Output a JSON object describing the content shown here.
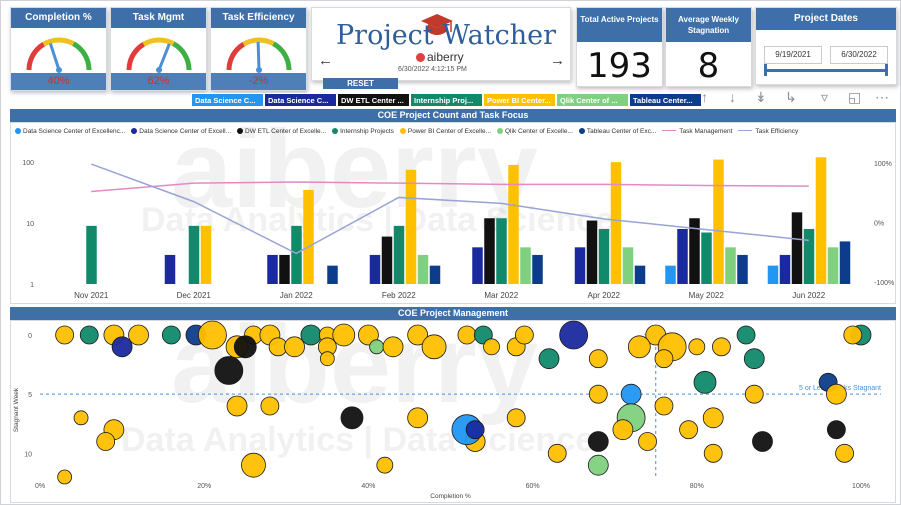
{
  "gauges": [
    {
      "title": "Completion %",
      "value": "40%",
      "level": 0.4,
      "needle_color": "#4a90d9"
    },
    {
      "title": "Task Mgmt",
      "value": "62%",
      "level": 0.62,
      "needle_color": "#4a90d9"
    },
    {
      "title": "Task Efficiency",
      "value": "-2%",
      "level": 0.49,
      "needle_color": "#4a90d9"
    }
  ],
  "header": {
    "app_title": "Project Watcher",
    "brand": "aiberry",
    "timestamp": "6/30/2022 4:12:15 PM",
    "reset_label": "RESET",
    "prev_icon": "arrow-left-icon",
    "next_icon": "arrow-right-icon"
  },
  "kpis": [
    {
      "title": "Total Active Projects",
      "value": "193"
    },
    {
      "title": "Average Weekly Stagnation",
      "value": "8"
    }
  ],
  "project_dates": {
    "title": "Project Dates",
    "start": "9/19/2021",
    "end": "6/30/2022",
    "range_fraction": [
      0.0,
      1.0
    ]
  },
  "filter_tabs": [
    {
      "label": "Data Science C...",
      "color": "#2196f3"
    },
    {
      "label": "Data Science C...",
      "color": "#1a2a9e"
    },
    {
      "label": "DW ETL Center ...",
      "color": "#111111"
    },
    {
      "label": "Internship Proj...",
      "color": "#11896b"
    },
    {
      "label": "Power BI Center...",
      "color": "#ffc000"
    },
    {
      "label": "Qlik Center of ...",
      "color": "#7fd17f"
    },
    {
      "label": "Tableau Center...",
      "color": "#0d3d8a"
    }
  ],
  "toolbar_icons": [
    "arrow-up-icon",
    "arrow-down-icon",
    "double-down-icon",
    "expand-level-icon",
    "filter-icon",
    "focus-mode-icon",
    "more-options-icon"
  ],
  "sections": {
    "chart1_title": "COE Project Count and Task Focus",
    "chart2_title": "COE Project Management"
  },
  "watermarks": {
    "brand": "aiberry",
    "tagline": "Data Analytics | Data Science"
  },
  "colors": {
    "ds1": "#2196f3",
    "ds2": "#1a2a9e",
    "dw": "#111111",
    "intern": "#11896b",
    "pbi": "#ffc000",
    "qlik": "#7fd17f",
    "tableau": "#0d3d8a",
    "task_mgmt": "#e589c6",
    "task_eff": "#9aa3d6",
    "header_blue": "#3e6fa8"
  },
  "chart_data": [
    {
      "type": "bar",
      "title": "COE Project Count and Task Focus",
      "y_scale": "log",
      "ylim": [
        1,
        100
      ],
      "y_ticks": [
        "1",
        "10",
        "100"
      ],
      "y2_ticks": [
        "100%",
        "0%",
        "-100%"
      ],
      "categories": [
        "Nov 2021",
        "Dec 2021",
        "Jan 2022",
        "Feb 2022",
        "Mar 2022",
        "Apr 2022",
        "May 2022",
        "Jun 2022"
      ],
      "legend_position": "top",
      "series": [
        {
          "name": "Data Science Center of Excellenc...",
          "values": [
            0,
            0,
            0,
            0,
            0,
            0,
            2,
            2
          ],
          "color": "#2196f3"
        },
        {
          "name": "Data Science Center of Excell...",
          "values": [
            0,
            3,
            3,
            3,
            4,
            4,
            8,
            3
          ],
          "color": "#1a2a9e"
        },
        {
          "name": "DW ETL Center of Excelle...",
          "values": [
            0,
            0,
            3,
            6,
            12,
            11,
            12,
            15
          ],
          "color": "#111111"
        },
        {
          "name": "Internship Projects",
          "values": [
            9,
            9,
            9,
            9,
            12,
            8,
            7,
            8
          ],
          "color": "#11896b"
        },
        {
          "name": "Power BI Center of Excelle...",
          "values": [
            0,
            9,
            35,
            75,
            90,
            100,
            110,
            120
          ],
          "color": "#ffc000"
        },
        {
          "name": "Qlik Center of Excelle...",
          "values": [
            0,
            0,
            0,
            3,
            4,
            4,
            4,
            4
          ],
          "color": "#7fd17f"
        },
        {
          "name": "Tableau Center of Exc...",
          "values": [
            0,
            0,
            2,
            2,
            3,
            2,
            3,
            5
          ],
          "color": "#0d3d8a"
        }
      ],
      "lines": [
        {
          "name": "Task Management",
          "values": [
            52,
            66,
            68,
            66,
            64,
            64,
            62,
            61
          ],
          "color": "#e589c6"
        },
        {
          "name": "Task Efficiency",
          "values": [
            98,
            35,
            -52,
            42,
            32,
            6,
            -12,
            -30
          ],
          "color": "#9aa3d6"
        }
      ]
    },
    {
      "type": "scatter",
      "title": "COE Project Management",
      "xlabel": "Completion %",
      "ylabel": "Stagnant Week",
      "x_ticks": [
        "0%",
        "20%",
        "40%",
        "60%",
        "80%",
        "100%"
      ],
      "y_ticks": [
        "0",
        "5",
        "10"
      ],
      "xlim": [
        0,
        100
      ],
      "ylim": [
        0,
        12
      ],
      "reference_lines": [
        {
          "label": "5 or Less Weeks Stagnant",
          "axis": "y",
          "value": 5
        },
        {
          "label": "75%",
          "axis": "x",
          "value": 75
        }
      ],
      "points": [
        {
          "x": 3,
          "y": 0,
          "r": 9,
          "c": "pbi"
        },
        {
          "x": 6,
          "y": 0,
          "r": 9,
          "c": "intern"
        },
        {
          "x": 9,
          "y": 0,
          "r": 10,
          "c": "pbi"
        },
        {
          "x": 10,
          "y": 1,
          "r": 10,
          "c": "ds2"
        },
        {
          "x": 12,
          "y": 0,
          "r": 10,
          "c": "pbi"
        },
        {
          "x": 16,
          "y": 0,
          "r": 9,
          "c": "intern"
        },
        {
          "x": 19,
          "y": 0,
          "r": 10,
          "c": "tableau"
        },
        {
          "x": 21,
          "y": 0,
          "r": 14,
          "c": "pbi"
        },
        {
          "x": 24,
          "y": 1,
          "r": 11,
          "c": "pbi"
        },
        {
          "x": 26,
          "y": 0,
          "r": 9,
          "c": "pbi"
        },
        {
          "x": 23,
          "y": 3,
          "r": 14,
          "c": "dw"
        },
        {
          "x": 25,
          "y": 1,
          "r": 11,
          "c": "dw"
        },
        {
          "x": 28,
          "y": 0,
          "r": 10,
          "c": "pbi"
        },
        {
          "x": 29,
          "y": 1,
          "r": 9,
          "c": "pbi"
        },
        {
          "x": 31,
          "y": 1,
          "r": 10,
          "c": "pbi"
        },
        {
          "x": 33,
          "y": 0,
          "r": 10,
          "c": "intern"
        },
        {
          "x": 35,
          "y": 0,
          "r": 8,
          "c": "pbi"
        },
        {
          "x": 35,
          "y": 1,
          "r": 9,
          "c": "pbi"
        },
        {
          "x": 37,
          "y": 0,
          "r": 11,
          "c": "pbi"
        },
        {
          "x": 40,
          "y": 0,
          "r": 10,
          "c": "pbi"
        },
        {
          "x": 35,
          "y": 2,
          "r": 7,
          "c": "pbi"
        },
        {
          "x": 41,
          "y": 1,
          "r": 7,
          "c": "qlik"
        },
        {
          "x": 43,
          "y": 1,
          "r": 10,
          "c": "pbi"
        },
        {
          "x": 46,
          "y": 0,
          "r": 10,
          "c": "pbi"
        },
        {
          "x": 48,
          "y": 1,
          "r": 12,
          "c": "pbi"
        },
        {
          "x": 52,
          "y": 0,
          "r": 9,
          "c": "pbi"
        },
        {
          "x": 54,
          "y": 0,
          "r": 9,
          "c": "intern"
        },
        {
          "x": 55,
          "y": 1,
          "r": 8,
          "c": "pbi"
        },
        {
          "x": 58,
          "y": 1,
          "r": 9,
          "c": "pbi"
        },
        {
          "x": 59,
          "y": 0,
          "r": 9,
          "c": "pbi"
        },
        {
          "x": 65,
          "y": 0,
          "r": 14,
          "c": "ds2"
        },
        {
          "x": 62,
          "y": 2,
          "r": 10,
          "c": "intern"
        },
        {
          "x": 68,
          "y": 2,
          "r": 9,
          "c": "pbi"
        },
        {
          "x": 75,
          "y": 0,
          "r": 10,
          "c": "pbi"
        },
        {
          "x": 73,
          "y": 1,
          "r": 11,
          "c": "pbi"
        },
        {
          "x": 77,
          "y": 1,
          "r": 14,
          "c": "pbi"
        },
        {
          "x": 76,
          "y": 2,
          "r": 9,
          "c": "pbi"
        },
        {
          "x": 81,
          "y": 4,
          "r": 11,
          "c": "intern"
        },
        {
          "x": 87,
          "y": 2,
          "r": 10,
          "c": "intern"
        },
        {
          "x": 80,
          "y": 1,
          "r": 8,
          "c": "pbi"
        },
        {
          "x": 83,
          "y": 1,
          "r": 9,
          "c": "pbi"
        },
        {
          "x": 86,
          "y": 0,
          "r": 9,
          "c": "intern"
        },
        {
          "x": 96,
          "y": 4,
          "r": 9,
          "c": "tableau"
        },
        {
          "x": 100,
          "y": 0,
          "r": 10,
          "c": "intern"
        },
        {
          "x": 99,
          "y": 0,
          "r": 9,
          "c": "pbi"
        },
        {
          "x": 5,
          "y": 7,
          "r": 7,
          "c": "pbi"
        },
        {
          "x": 9,
          "y": 8,
          "r": 10,
          "c": "pbi"
        },
        {
          "x": 24,
          "y": 6,
          "r": 10,
          "c": "pbi"
        },
        {
          "x": 28,
          "y": 6,
          "r": 9,
          "c": "pbi"
        },
        {
          "x": 38,
          "y": 7,
          "r": 11,
          "c": "dw"
        },
        {
          "x": 46,
          "y": 7,
          "r": 10,
          "c": "pbi"
        },
        {
          "x": 53,
          "y": 9,
          "r": 10,
          "c": "pbi"
        },
        {
          "x": 58,
          "y": 7,
          "r": 9,
          "c": "pbi"
        },
        {
          "x": 68,
          "y": 5,
          "r": 9,
          "c": "pbi"
        },
        {
          "x": 72,
          "y": 5,
          "r": 10,
          "c": "ds1"
        },
        {
          "x": 72,
          "y": 7,
          "r": 14,
          "c": "qlik"
        },
        {
          "x": 76,
          "y": 6,
          "r": 9,
          "c": "pbi"
        },
        {
          "x": 79,
          "y": 8,
          "r": 9,
          "c": "pbi"
        },
        {
          "x": 82,
          "y": 7,
          "r": 10,
          "c": "pbi"
        },
        {
          "x": 87,
          "y": 5,
          "r": 9,
          "c": "pbi"
        },
        {
          "x": 97,
          "y": 5,
          "r": 10,
          "c": "pbi"
        },
        {
          "x": 52,
          "y": 8,
          "r": 15,
          "c": "ds1"
        },
        {
          "x": 53,
          "y": 8,
          "r": 9,
          "c": "ds2"
        },
        {
          "x": 68,
          "y": 9,
          "r": 10,
          "c": "dw"
        },
        {
          "x": 71,
          "y": 8,
          "r": 10,
          "c": "pbi"
        },
        {
          "x": 74,
          "y": 9,
          "r": 9,
          "c": "pbi"
        },
        {
          "x": 88,
          "y": 9,
          "r": 10,
          "c": "dw"
        },
        {
          "x": 97,
          "y": 8,
          "r": 9,
          "c": "dw"
        },
        {
          "x": 98,
          "y": 10,
          "r": 9,
          "c": "pbi"
        },
        {
          "x": 26,
          "y": 11,
          "r": 12,
          "c": "pbi"
        },
        {
          "x": 42,
          "y": 11,
          "r": 8,
          "c": "pbi"
        },
        {
          "x": 68,
          "y": 11,
          "r": 10,
          "c": "qlik"
        },
        {
          "x": 82,
          "y": 10,
          "r": 9,
          "c": "pbi"
        },
        {
          "x": 8,
          "y": 9,
          "r": 9,
          "c": "pbi"
        },
        {
          "x": 63,
          "y": 10,
          "r": 9,
          "c": "pbi"
        },
        {
          "x": 3,
          "y": 12,
          "r": 7,
          "c": "pbi"
        }
      ]
    }
  ]
}
